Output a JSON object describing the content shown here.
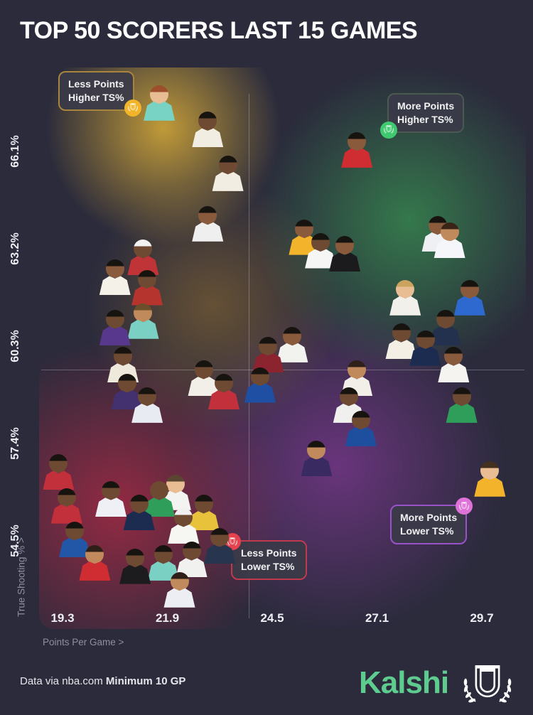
{
  "title": "TOP 50 SCORERS LAST 15 GAMES",
  "quadrant_labels": {
    "top_left": {
      "line1": "Less Points",
      "line2": "Higher TS%"
    },
    "top_right": {
      "line1": "More Points",
      "line2": "Higher TS%"
    },
    "bottom_right": {
      "line1": "More Points",
      "line2": "Lower TS%"
    },
    "bottom_center": {
      "line1": "Less Points",
      "line2": "Lower TS%"
    }
  },
  "axes": {
    "x_title": "Points Per Game >",
    "y_title": "True Shooting % >"
  },
  "footer": {
    "credit_regular": "Data via nba.com ",
    "credit_bold": "Minimum 10 GP",
    "brand": "Kalshi"
  },
  "colors": {
    "background": "#2b2b3c",
    "brand_green": "#5ecb8f",
    "quad_tl_border": "#a8853c",
    "quad_tl_badge": "#f2b52a",
    "quad_tr_border": "#4a5a50",
    "quad_tr_badge": "#3fca70",
    "quad_br_border": "#9a52c9",
    "quad_br_badge": "#df72d8",
    "quad_bc_border": "#bf3a4c",
    "quad_bc_badge": "#e5414e"
  },
  "chart_data": {
    "type": "scatter",
    "title": "TOP 50 SCORERS LAST 15 GAMES",
    "xlabel": "Points Per Game",
    "ylabel": "True Shooting %",
    "x_ticks": [
      19.3,
      21.9,
      24.5,
      27.1,
      29.7
    ],
    "y_ticks": [
      66.1,
      63.2,
      60.3,
      57.4,
      54.5
    ],
    "xlim": [
      17.8,
      31.0
    ],
    "ylim": [
      52.2,
      68.5
    ],
    "marker": "player-headshot",
    "points": [
      {
        "ppg": 21.7,
        "ts": 67.8,
        "jersey": "#79d3c4",
        "skin": "#e9bd93",
        "hair": "#9c4f2a"
      },
      {
        "ppg": 22.9,
        "ts": 67.0,
        "jersey": "#f1ede2",
        "skin": "#6e4a33",
        "hair": "#17130f"
      },
      {
        "ppg": 23.4,
        "ts": 65.7,
        "jersey": "#f1ede2",
        "skin": "#6e4a33",
        "hair": "#17130f"
      },
      {
        "ppg": 22.9,
        "ts": 64.2,
        "jersey": "#efefef",
        "skin": "#8a5a3d",
        "hair": "#17130f"
      },
      {
        "ppg": 21.3,
        "ts": 63.2,
        "jersey": "#c03438",
        "skin": "#6e4a33",
        "hair": "#f2f2f2"
      },
      {
        "ppg": 20.6,
        "ts": 62.6,
        "jersey": "#f4f1e8",
        "skin": "#8a5a3d",
        "hair": "#17130f"
      },
      {
        "ppg": 21.4,
        "ts": 62.3,
        "jersey": "#b5342e",
        "skin": "#6e4a33",
        "hair": "#17130f"
      },
      {
        "ppg": 20.6,
        "ts": 61.1,
        "jersey": "#58388c",
        "skin": "#6e4a33",
        "hair": "#17130f"
      },
      {
        "ppg": 21.3,
        "ts": 61.3,
        "jersey": "#7ad0c3",
        "skin": "#c08a5c",
        "hair": "#6b4f2a"
      },
      {
        "ppg": 20.8,
        "ts": 60.0,
        "jersey": "#efe9dc",
        "skin": "#6e4a33",
        "hair": "#17130f"
      },
      {
        "ppg": 22.8,
        "ts": 59.6,
        "jersey": "#f2efe8",
        "skin": "#6e4a33",
        "hair": "#17130f"
      },
      {
        "ppg": 23.3,
        "ts": 59.2,
        "jersey": "#c2303c",
        "skin": "#6e4a33",
        "hair": "#17130f"
      },
      {
        "ppg": 20.9,
        "ts": 59.2,
        "jersey": "#43306e",
        "skin": "#6e4a33",
        "hair": "#17130f"
      },
      {
        "ppg": 21.4,
        "ts": 58.8,
        "jersey": "#e8ecf2",
        "skin": "#6e4a33",
        "hair": "#17130f"
      },
      {
        "ppg": 25.0,
        "ts": 60.6,
        "jersey": "#f2f2ee",
        "skin": "#8a5a3d",
        "hair": "#17130f"
      },
      {
        "ppg": 24.4,
        "ts": 60.3,
        "jersey": "#8c2430",
        "skin": "#6e4a33",
        "hair": "#17130f"
      },
      {
        "ppg": 24.2,
        "ts": 59.4,
        "jersey": "#1f4fa3",
        "skin": "#6e4a33",
        "hair": "#17130f"
      },
      {
        "ppg": 26.6,
        "ts": 66.4,
        "jersey": "#cf2d31",
        "skin": "#8a5a3d",
        "hair": "#17130f"
      },
      {
        "ppg": 25.3,
        "ts": 63.8,
        "jersey": "#f3b32b",
        "skin": "#8a5a3d",
        "hair": "#17130f"
      },
      {
        "ppg": 25.7,
        "ts": 63.4,
        "jersey": "#f6f6f4",
        "skin": "#6e4a33",
        "hair": "#17130f"
      },
      {
        "ppg": 26.3,
        "ts": 63.3,
        "jersey": "#1b1b1d",
        "skin": "#8a5a3d",
        "hair": "#17130f"
      },
      {
        "ppg": 28.6,
        "ts": 63.9,
        "jersey": "#eef0f4",
        "skin": "#8a5a3d",
        "hair": "#17130f"
      },
      {
        "ppg": 28.9,
        "ts": 63.7,
        "jersey": "#f4f6fa",
        "skin": "#c08a5c",
        "hair": "#3a2417"
      },
      {
        "ppg": 27.8,
        "ts": 62.0,
        "jersey": "#f1f0ea",
        "skin": "#e9bd93",
        "hair": "#caa45e"
      },
      {
        "ppg": 29.4,
        "ts": 62.0,
        "jersey": "#2e69cf",
        "skin": "#8a5a3d",
        "hair": "#17130f"
      },
      {
        "ppg": 27.7,
        "ts": 60.7,
        "jersey": "#f3efe4",
        "skin": "#6e4a33",
        "hair": "#17130f"
      },
      {
        "ppg": 28.8,
        "ts": 61.1,
        "jersey": "#23304e",
        "skin": "#6e4a33",
        "hair": "#17130f"
      },
      {
        "ppg": 28.3,
        "ts": 60.5,
        "jersey": "#1c2b50",
        "skin": "#6e4a33",
        "hair": "#17130f"
      },
      {
        "ppg": 29.0,
        "ts": 60.0,
        "jersey": "#f5f4f0",
        "skin": "#8a5a3d",
        "hair": "#17130f"
      },
      {
        "ppg": 29.2,
        "ts": 58.8,
        "jersey": "#2f9e5b",
        "skin": "#6e4a33",
        "hair": "#17130f"
      },
      {
        "ppg": 26.6,
        "ts": 59.6,
        "jersey": "#f2efe9",
        "skin": "#c08a5c",
        "hair": "#2e2018"
      },
      {
        "ppg": 26.4,
        "ts": 58.8,
        "jersey": "#f0f0ee",
        "skin": "#6e4a33",
        "hair": "#17130f"
      },
      {
        "ppg": 26.7,
        "ts": 58.1,
        "jersey": "#1e4f9e",
        "skin": "#6e4a33",
        "hair": "#17130f"
      },
      {
        "ppg": 25.6,
        "ts": 57.2,
        "jersey": "#3a2a62",
        "skin": "#c08a5c",
        "hair": "#17130f"
      },
      {
        "ppg": 29.9,
        "ts": 56.6,
        "jersey": "#f3b32b",
        "skin": "#e9bd93",
        "hair": "#43301f"
      },
      {
        "ppg": 19.2,
        "ts": 56.8,
        "jersey": "#c2303c",
        "skin": "#6e4a33",
        "hair": "#17130f"
      },
      {
        "ppg": 19.4,
        "ts": 55.8,
        "jersey": "#c2303c",
        "skin": "#6e4a33",
        "hair": "#17130f"
      },
      {
        "ppg": 19.6,
        "ts": 54.8,
        "jersey": "#2257a8",
        "skin": "#6e4a33",
        "hair": "#17130f"
      },
      {
        "ppg": 20.5,
        "ts": 56.0,
        "jersey": "#eef0f6",
        "skin": "#6e4a33",
        "hair": "#17130f"
      },
      {
        "ppg": 21.2,
        "ts": 55.6,
        "jersey": "#1c2b50",
        "skin": "#6e4a33",
        "hair": "#17130f"
      },
      {
        "ppg": 21.7,
        "ts": 56.0,
        "jersey": "#2f9e5b",
        "skin": "#6e4a33",
        "hair": "#6e4a33"
      },
      {
        "ppg": 22.1,
        "ts": 56.2,
        "jersey": "#f3f3f1",
        "skin": "#e9bd93",
        "hair": "#5a4630"
      },
      {
        "ppg": 22.3,
        "ts": 55.2,
        "jersey": "#f6f6f2",
        "skin": "#6e4a33",
        "hair": "#f0f0f0"
      },
      {
        "ppg": 22.8,
        "ts": 55.6,
        "jersey": "#e9c23c",
        "skin": "#6e4a33",
        "hair": "#17130f"
      },
      {
        "ppg": 20.1,
        "ts": 54.1,
        "jersey": "#cf2d31",
        "skin": "#c08a5c",
        "hair": "#2e2018"
      },
      {
        "ppg": 21.1,
        "ts": 54.0,
        "jersey": "#1c1c1e",
        "skin": "#6e4a33",
        "hair": "#17130f"
      },
      {
        "ppg": 21.8,
        "ts": 54.1,
        "jersey": "#7ad0c3",
        "skin": "#6e4a33",
        "hair": "#17130f"
      },
      {
        "ppg": 22.5,
        "ts": 54.2,
        "jersey": "#f1f1ef",
        "skin": "#6e4a33",
        "hair": "#17130f"
      },
      {
        "ppg": 22.2,
        "ts": 53.3,
        "jersey": "#eceef4",
        "skin": "#c08a5c",
        "hair": "#2e2018"
      },
      {
        "ppg": 23.2,
        "ts": 54.6,
        "jersey": "#27364e",
        "skin": "#6e4a33",
        "hair": "#17130f"
      }
    ]
  }
}
